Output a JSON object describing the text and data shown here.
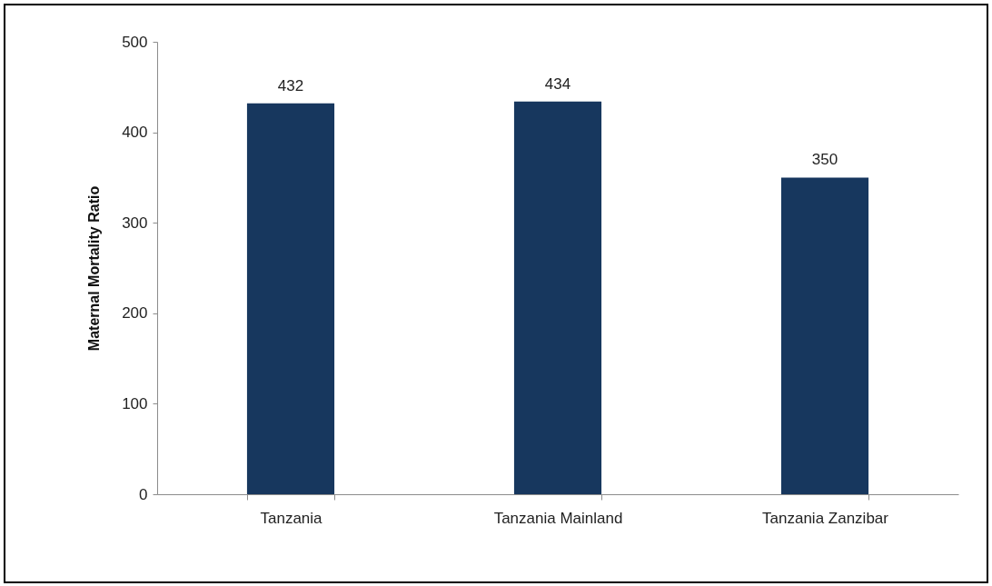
{
  "chart_data": {
    "type": "bar",
    "ylabel": "Maternal Mortality Ratio",
    "categories": [
      "Tanzania",
      "Tanzania Mainland",
      "Tanzania Zanzibar"
    ],
    "values": [
      432,
      434,
      350
    ],
    "color": "#17375e",
    "ylim": [
      0,
      500
    ],
    "yticks": [
      0,
      100,
      200,
      300,
      400,
      500
    ],
    "data_labels": true
  }
}
